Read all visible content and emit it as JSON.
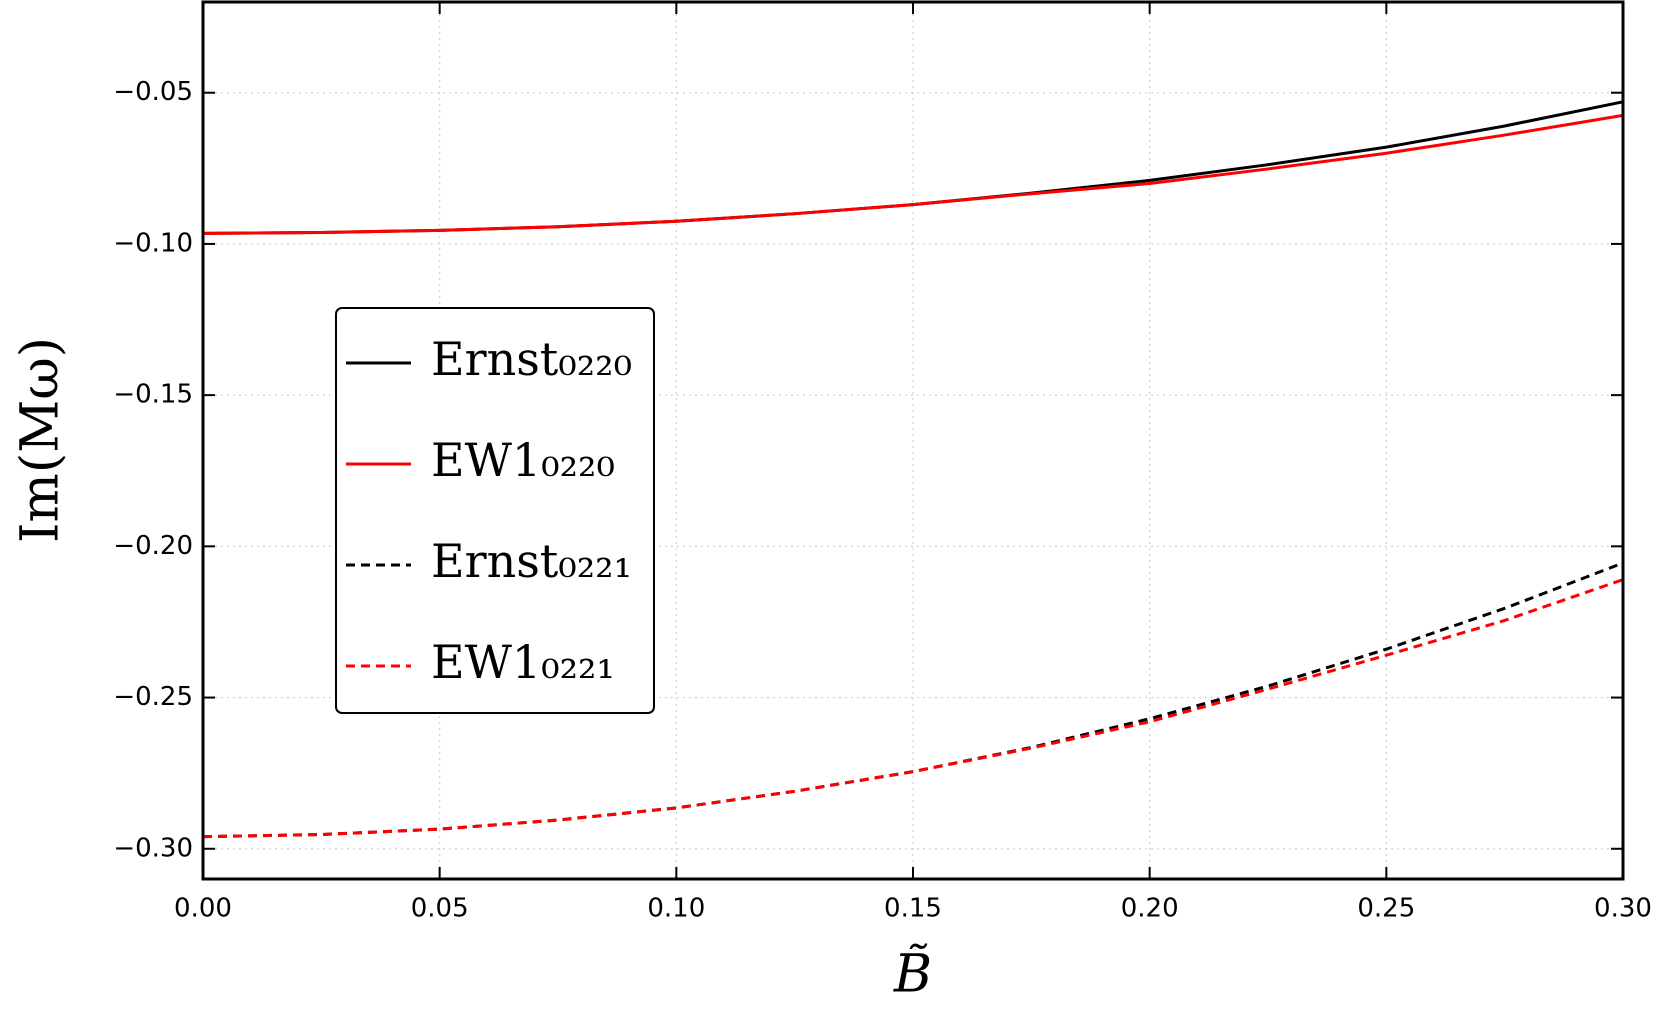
{
  "chart_data": {
    "type": "line",
    "xlabel": "B̃",
    "ylabel": "Im(Mω)",
    "x": [
      0,
      0.025,
      0.05,
      0.075,
      0.1,
      0.125,
      0.15,
      0.175,
      0.2,
      0.225,
      0.25,
      0.275,
      0.3
    ],
    "series": [
      {
        "name": "Ernst₀₂₂₀",
        "color": "#000000",
        "dash": "solid",
        "values": [
          -0.0965,
          -0.0962,
          -0.0955,
          -0.0943,
          -0.0925,
          -0.09,
          -0.087,
          -0.0832,
          -0.079,
          -0.0738,
          -0.068,
          -0.061,
          -0.053
        ]
      },
      {
        "name": "EW1₀₂₂₀",
        "color": "#ff0000",
        "dash": "solid",
        "values": [
          -0.0965,
          -0.0962,
          -0.0955,
          -0.0943,
          -0.0925,
          -0.09,
          -0.087,
          -0.0834,
          -0.08,
          -0.0752,
          -0.07,
          -0.064,
          -0.0575
        ]
      },
      {
        "name": "Ernst₀₂₂₁",
        "color": "#000000",
        "dash": "dashed",
        "values": [
          -0.296,
          -0.2953,
          -0.2935,
          -0.2905,
          -0.2865,
          -0.281,
          -0.2745,
          -0.2665,
          -0.257,
          -0.2462,
          -0.234,
          -0.2205,
          -0.2055
        ]
      },
      {
        "name": "EW1₀₂₂₁",
        "color": "#ff0000",
        "dash": "dashed",
        "values": [
          -0.296,
          -0.2953,
          -0.2935,
          -0.2905,
          -0.2865,
          -0.281,
          -0.2745,
          -0.2667,
          -0.258,
          -0.2472,
          -0.236,
          -0.2245,
          -0.211
        ]
      }
    ],
    "xlim": [
      0,
      0.3
    ],
    "xticks": [
      {
        "value": 0,
        "label": "0.00"
      },
      0.05,
      {
        "value": 0.1,
        "label": "0.10"
      },
      0.15,
      {
        "value": 0.2,
        "label": "0.20"
      },
      0.25,
      {
        "value": 0.3,
        "label": "0.30"
      }
    ],
    "ylim": [
      -0.31,
      -0.02
    ],
    "yticks": [
      {
        "value": -0.3,
        "label": "−0.30"
      },
      {
        "value": -0.25,
        "label": "−0.25"
      },
      {
        "value": -0.2,
        "label": "−0.20"
      },
      {
        "value": -0.15,
        "label": "−0.15"
      },
      {
        "value": -0.1,
        "label": "−0.10"
      },
      {
        "value": -0.05,
        "label": "−0.05"
      }
    ],
    "grid": true,
    "legend": "center left"
  }
}
